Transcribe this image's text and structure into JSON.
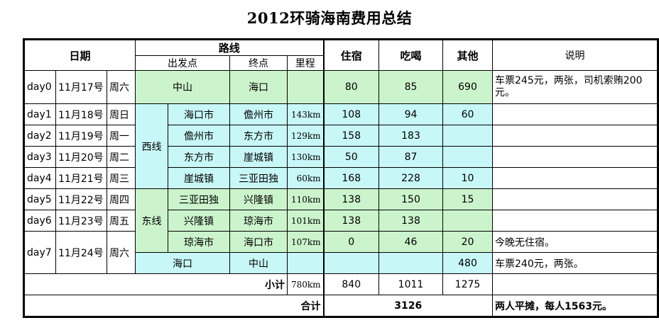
{
  "title": "2012环骑海南费用总结",
  "headers": {
    "date": "日期",
    "route": "路线",
    "start": "出发点",
    "end": "终点",
    "distance": "里程",
    "lodging": "住宿",
    "food": "吃喝",
    "other": "其他",
    "notes": "说明"
  },
  "groups": {
    "west": "西线",
    "east": "东线"
  },
  "rows": [
    {
      "day": "day0",
      "date": "11月17号",
      "weekday": "周六",
      "start": "中山",
      "end": "海口",
      "km": "",
      "lodging": "80",
      "food": "85",
      "other": "690",
      "note": "车票245元，两张，司机索贿200元。"
    },
    {
      "day": "day1",
      "date": "11月18号",
      "weekday": "周日",
      "start": "海口市",
      "end": "儋州市",
      "km": "143km",
      "lodging": "108",
      "food": "94",
      "other": "60",
      "note": ""
    },
    {
      "day": "day2",
      "date": "11月19号",
      "weekday": "周一",
      "start": "儋州市",
      "end": "东方市",
      "km": "129km",
      "lodging": "158",
      "food": "183",
      "other": "",
      "note": ""
    },
    {
      "day": "day3",
      "date": "11月20号",
      "weekday": "周二",
      "start": "东方市",
      "end": "崖城镇",
      "km": "130km",
      "lodging": "50",
      "food": "87",
      "other": "",
      "note": ""
    },
    {
      "day": "day4",
      "date": "11月21号",
      "weekday": "周三",
      "start": "崖城镇",
      "end": "三亚田独",
      "km": "60km",
      "lodging": "168",
      "food": "228",
      "other": "10",
      "note": ""
    },
    {
      "day": "day5",
      "date": "11月22号",
      "weekday": "周四",
      "start": "三亚田独",
      "end": "兴隆镇",
      "km": "110km",
      "lodging": "138",
      "food": "150",
      "other": "15",
      "note": ""
    },
    {
      "day": "day6",
      "date": "11月23号",
      "weekday": "周五",
      "start": "兴隆镇",
      "end": "琼海市",
      "km": "101km",
      "lodging": "138",
      "food": "138",
      "other": "",
      "note": ""
    },
    {
      "day": "day7",
      "date": "11月24号",
      "weekday": "周六",
      "start": "琼海市",
      "end": "海口市",
      "km": "107km",
      "lodging": "0",
      "food": "46",
      "other": "20",
      "note": "今晚无住宿。"
    },
    {
      "day": "",
      "date": "",
      "weekday": "",
      "start": "海口",
      "end": "中山",
      "km": "",
      "lodging": "",
      "food": "",
      "other": "480",
      "note": "车票240元，两张。"
    }
  ],
  "subtotal": {
    "label": "小计",
    "km": "780km",
    "lodging": "840",
    "food": "1011",
    "other": "1275"
  },
  "total": {
    "label": "合计",
    "value": "3126",
    "note": "两人平摊，每人1563元。"
  }
}
